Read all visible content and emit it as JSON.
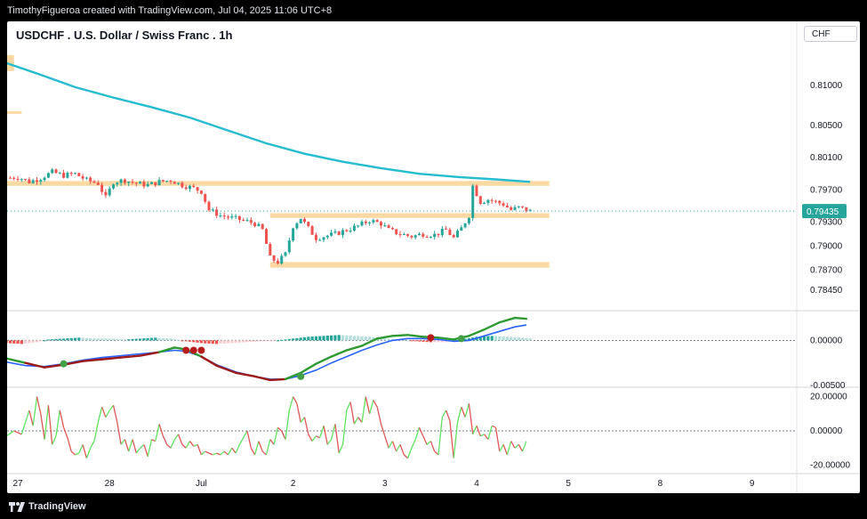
{
  "header": {
    "credit": "TimothyFigueroa created with TradingView.com, Jul 04, 2025 11:06 UTC+8"
  },
  "symbol": {
    "title": "USDCHF . U.S. Dollar / Swiss Franc . 1h",
    "currency": "CHF"
  },
  "footer": {
    "brand": "TradingView"
  },
  "colors": {
    "up": "#26a69a",
    "down": "#ef5350",
    "ma": "#26bcd0",
    "zone": "#fcd9a2",
    "macd_fast": "#2e9a32",
    "macd_slow": "#2962ff",
    "macd_dn": "#9c1a1a",
    "osc_up": "#5fe35f",
    "osc_dn": "#e05656"
  },
  "chart_data": {
    "type": "candlestick",
    "x_ticks": [
      {
        "label": "27",
        "t": 0
      },
      {
        "label": "28",
        "t": 24
      },
      {
        "label": "Jul",
        "t": 48
      },
      {
        "label": "2",
        "t": 72
      },
      {
        "label": "3",
        "t": 96
      },
      {
        "label": "4",
        "t": 120
      },
      {
        "label": "5",
        "t": 144
      },
      {
        "label": "8",
        "t": 168
      },
      {
        "label": "9",
        "t": 192
      }
    ],
    "price_pane": {
      "ylim": [
        0.7825,
        0.814
      ],
      "y_ticks": [
        "0.81000",
        "0.80500",
        "0.80100",
        "0.79700",
        "0.79300",
        "0.79000",
        "0.78700",
        "0.78450"
      ],
      "last_price": "0.79435",
      "path": [
        [
          -2,
          0.7985
        ],
        [
          0,
          0.7986
        ],
        [
          3,
          0.798
        ],
        [
          6,
          0.7985
        ],
        [
          9,
          0.7992
        ],
        [
          12,
          0.7988
        ],
        [
          15,
          0.799
        ],
        [
          18,
          0.7982
        ],
        [
          21,
          0.7978
        ],
        [
          23,
          0.796
        ],
        [
          25,
          0.798
        ],
        [
          28,
          0.7982
        ],
        [
          31,
          0.7978
        ],
        [
          34,
          0.7976
        ],
        [
          37,
          0.798
        ],
        [
          40,
          0.7982
        ],
        [
          43,
          0.7976
        ],
        [
          46,
          0.7972
        ],
        [
          48,
          0.7968
        ],
        [
          50,
          0.7945
        ],
        [
          53,
          0.7938
        ],
        [
          56,
          0.7935
        ],
        [
          59,
          0.7932
        ],
        [
          62,
          0.7928
        ],
        [
          64,
          0.792
        ],
        [
          66,
          0.7885
        ],
        [
          68,
          0.788
        ],
        [
          70,
          0.789
        ],
        [
          72,
          0.7925
        ],
        [
          74,
          0.7935
        ],
        [
          76,
          0.7922
        ],
        [
          78,
          0.791
        ],
        [
          80,
          0.7912
        ],
        [
          83,
          0.7915
        ],
        [
          86,
          0.792
        ],
        [
          89,
          0.7925
        ],
        [
          92,
          0.7932
        ],
        [
          95,
          0.7928
        ],
        [
          97,
          0.792
        ],
        [
          100,
          0.7915
        ],
        [
          103,
          0.7912
        ],
        [
          106,
          0.7915
        ],
        [
          109,
          0.7914
        ],
        [
          112,
          0.792
        ],
        [
          114,
          0.791
        ],
        [
          116,
          0.7922
        ],
        [
          118,
          0.7938
        ],
        [
          119,
          0.7975
        ],
        [
          121,
          0.7955
        ],
        [
          123,
          0.7958
        ],
        [
          125,
          0.7955
        ],
        [
          127,
          0.7952
        ],
        [
          129,
          0.7945
        ],
        [
          131,
          0.7948
        ],
        [
          133,
          0.7945
        ],
        [
          134,
          0.79435
        ]
      ],
      "ma_series": [
        [
          -3,
          0.8128
        ],
        [
          5,
          0.8115
        ],
        [
          15,
          0.8098
        ],
        [
          25,
          0.8085
        ],
        [
          35,
          0.8073
        ],
        [
          45,
          0.806
        ],
        [
          55,
          0.8044
        ],
        [
          65,
          0.8028
        ],
        [
          75,
          0.8015
        ],
        [
          85,
          0.8005
        ],
        [
          95,
          0.7997
        ],
        [
          105,
          0.799
        ],
        [
          115,
          0.7986
        ],
        [
          125,
          0.7983
        ],
        [
          134,
          0.798
        ]
      ],
      "zones": [
        {
          "t0": -3,
          "t1": 139,
          "p0": 0.7975,
          "p1": 0.7981
        },
        {
          "t0": 66,
          "t1": 139,
          "p0": 0.7935,
          "p1": 0.7941
        },
        {
          "t0": 66,
          "t1": 139,
          "p0": 0.7873,
          "p1": 0.788
        },
        {
          "t0": -3,
          "t1": 1,
          "p0": 0.8065,
          "p1": 0.8068
        },
        {
          "t0": -3,
          "t1": -1,
          "p0": 0.8118,
          "p1": 0.8138
        }
      ]
    },
    "macd_pane": {
      "ylim": [
        -0.0051,
        0.0028
      ],
      "y_ticks": [
        "0.00000",
        "-0.00500"
      ],
      "fast": [
        [
          -3,
          -0.002
        ],
        [
          2,
          -0.0025
        ],
        [
          7,
          -0.003
        ],
        [
          12,
          -0.0027
        ],
        [
          17,
          -0.0023
        ],
        [
          22,
          -0.0021
        ],
        [
          27,
          -0.0019
        ],
        [
          32,
          -0.0017
        ],
        [
          37,
          -0.0013
        ],
        [
          41,
          -0.0008
        ],
        [
          44,
          -0.001
        ],
        [
          48,
          -0.0018
        ],
        [
          52,
          -0.0028
        ],
        [
          57,
          -0.0036
        ],
        [
          62,
          -0.004
        ],
        [
          66,
          -0.0044
        ],
        [
          70,
          -0.0043
        ],
        [
          74,
          -0.0036
        ],
        [
          78,
          -0.0026
        ],
        [
          82,
          -0.0018
        ],
        [
          86,
          -0.0011
        ],
        [
          90,
          -0.0006
        ],
        [
          94,
          0.0002
        ],
        [
          98,
          0.0005
        ],
        [
          102,
          0.0006
        ],
        [
          106,
          0.0004
        ],
        [
          110,
          0.0003
        ],
        [
          114,
          0.0001
        ],
        [
          118,
          0.0005
        ],
        [
          122,
          0.0012
        ],
        [
          126,
          0.002
        ],
        [
          130,
          0.0025
        ],
        [
          133,
          0.0024
        ]
      ],
      "slow": [
        [
          -3,
          -0.0024
        ],
        [
          2,
          -0.0028
        ],
        [
          7,
          -0.0029
        ],
        [
          12,
          -0.0026
        ],
        [
          17,
          -0.0022
        ],
        [
          22,
          -0.0019
        ],
        [
          27,
          -0.0017
        ],
        [
          32,
          -0.0015
        ],
        [
          37,
          -0.0013
        ],
        [
          41,
          -0.0011
        ],
        [
          44,
          -0.0012
        ],
        [
          48,
          -0.0018
        ],
        [
          52,
          -0.0027
        ],
        [
          57,
          -0.0035
        ],
        [
          62,
          -0.004
        ],
        [
          66,
          -0.0043
        ],
        [
          70,
          -0.0043
        ],
        [
          74,
          -0.0039
        ],
        [
          78,
          -0.0033
        ],
        [
          82,
          -0.0025
        ],
        [
          86,
          -0.0018
        ],
        [
          90,
          -0.0011
        ],
        [
          94,
          -0.0005
        ],
        [
          98,
          0.0
        ],
        [
          102,
          0.0002
        ],
        [
          106,
          0.0002
        ],
        [
          110,
          0.0001
        ],
        [
          114,
          -0.0001
        ],
        [
          118,
          0.0
        ],
        [
          122,
          0.0005
        ],
        [
          126,
          0.001
        ],
        [
          130,
          0.0015
        ],
        [
          133,
          0.0017
        ]
      ],
      "crosses": [
        [
          12,
          -0.0026,
          "up"
        ],
        [
          44,
          -0.0011,
          "dn"
        ],
        [
          46,
          -0.0011,
          "dn"
        ],
        [
          48,
          -0.0011,
          "dn"
        ],
        [
          74,
          -0.004,
          "up"
        ],
        [
          108,
          0.0003,
          "dn"
        ],
        [
          116,
          0.0002,
          "up"
        ]
      ],
      "hist": [
        [
          -3,
          -0.0003
        ],
        [
          1,
          -0.0004
        ],
        [
          5,
          -0.0002
        ],
        [
          8,
          0.0001
        ],
        [
          12,
          0.0002
        ],
        [
          16,
          0.0003
        ],
        [
          20,
          0.0002
        ],
        [
          24,
          0.0002
        ],
        [
          28,
          0.0001
        ],
        [
          32,
          0.0002
        ],
        [
          36,
          0.0003
        ],
        [
          40,
          0.0002
        ],
        [
          44,
          -0.0001
        ],
        [
          48,
          -0.0003
        ],
        [
          52,
          -0.0004
        ],
        [
          56,
          -0.0003
        ],
        [
          60,
          -0.0002
        ],
        [
          64,
          -0.0001
        ],
        [
          68,
          0.0
        ],
        [
          72,
          0.0002
        ],
        [
          76,
          0.0004
        ],
        [
          80,
          0.0005
        ],
        [
          84,
          0.0006
        ],
        [
          88,
          0.0005
        ],
        [
          92,
          0.0004
        ],
        [
          96,
          0.0002
        ],
        [
          100,
          0.0001
        ],
        [
          104,
          -0.0001
        ],
        [
          108,
          -0.0002
        ],
        [
          112,
          -0.0002
        ],
        [
          116,
          0.0001
        ],
        [
          120,
          0.0004
        ],
        [
          124,
          0.0005
        ],
        [
          128,
          0.0004
        ],
        [
          132,
          0.0003
        ],
        [
          134,
          0.0002
        ]
      ]
    },
    "osc_pane": {
      "ylim": [
        -25,
        24
      ],
      "y_ticks": [
        "20.00000",
        "0.00000",
        "-20.00000"
      ],
      "series": [
        [
          -3,
          -3
        ],
        [
          -1,
          0
        ],
        [
          1,
          -2
        ],
        [
          3,
          12
        ],
        [
          4,
          3
        ],
        [
          5,
          20
        ],
        [
          6,
          10
        ],
        [
          7,
          -5
        ],
        [
          8,
          15
        ],
        [
          9,
          -8
        ],
        [
          10,
          -3
        ],
        [
          11,
          12
        ],
        [
          12,
          2
        ],
        [
          13,
          -4
        ],
        [
          14,
          -12
        ],
        [
          15,
          -14
        ],
        [
          16,
          -13
        ],
        [
          17,
          -8
        ],
        [
          18,
          -16
        ],
        [
          19,
          -10
        ],
        [
          20,
          -6
        ],
        [
          21,
          5
        ],
        [
          22,
          14
        ],
        [
          23,
          8
        ],
        [
          24,
          12
        ],
        [
          25,
          15
        ],
        [
          26,
          5
        ],
        [
          27,
          -8
        ],
        [
          28,
          -5
        ],
        [
          29,
          -12
        ],
        [
          30,
          -5
        ],
        [
          31,
          -13
        ],
        [
          32,
          -10
        ],
        [
          33,
          -8
        ],
        [
          34,
          -15
        ],
        [
          35,
          -5
        ],
        [
          36,
          -6
        ],
        [
          37,
          4
        ],
        [
          38,
          -3
        ],
        [
          39,
          -8
        ],
        [
          40,
          -10
        ],
        [
          41,
          -5
        ],
        [
          42,
          -2
        ],
        [
          43,
          -8
        ],
        [
          44,
          -10
        ],
        [
          45,
          -6
        ],
        [
          46,
          -9
        ],
        [
          47,
          -8
        ],
        [
          48,
          -14
        ],
        [
          49,
          -12
        ],
        [
          50,
          -13
        ],
        [
          51,
          -14
        ],
        [
          52,
          -13
        ],
        [
          53,
          -14
        ],
        [
          54,
          -12
        ],
        [
          55,
          -14
        ],
        [
          56,
          -10
        ],
        [
          57,
          -13
        ],
        [
          58,
          -8
        ],
        [
          59,
          -4
        ],
        [
          60,
          0
        ],
        [
          61,
          -10
        ],
        [
          62,
          -14
        ],
        [
          63,
          -6
        ],
        [
          64,
          -12
        ],
        [
          65,
          -14
        ],
        [
          66,
          -5
        ],
        [
          67,
          -8
        ],
        [
          68,
          2
        ],
        [
          69,
          0
        ],
        [
          70,
          -5
        ],
        [
          71,
          12
        ],
        [
          72,
          20
        ],
        [
          73,
          16
        ],
        [
          74,
          5
        ],
        [
          75,
          8
        ],
        [
          76,
          -2
        ],
        [
          77,
          -6
        ],
        [
          78,
          -3
        ],
        [
          79,
          -4
        ],
        [
          80,
          3
        ],
        [
          81,
          -8
        ],
        [
          82,
          -5
        ],
        [
          83,
          4
        ],
        [
          84,
          -13
        ],
        [
          85,
          -8
        ],
        [
          86,
          12
        ],
        [
          87,
          17
        ],
        [
          88,
          4
        ],
        [
          89,
          8
        ],
        [
          90,
          5
        ],
        [
          91,
          20
        ],
        [
          92,
          10
        ],
        [
          93,
          18
        ],
        [
          94,
          14
        ],
        [
          95,
          4
        ],
        [
          96,
          -3
        ],
        [
          97,
          -10
        ],
        [
          98,
          -6
        ],
        [
          99,
          -12
        ],
        [
          100,
          -8
        ],
        [
          101,
          -14
        ],
        [
          102,
          -16
        ],
        [
          103,
          -10
        ],
        [
          104,
          -5
        ],
        [
          105,
          2
        ],
        [
          106,
          -3
        ],
        [
          107,
          -8
        ],
        [
          108,
          -6
        ],
        [
          109,
          -12
        ],
        [
          110,
          -14
        ],
        [
          111,
          8
        ],
        [
          112,
          12
        ],
        [
          113,
          6
        ],
        [
          114,
          -16
        ],
        [
          115,
          5
        ],
        [
          116,
          14
        ],
        [
          117,
          8
        ],
        [
          118,
          16
        ],
        [
          119,
          -2
        ],
        [
          120,
          3
        ],
        [
          121,
          -3
        ],
        [
          122,
          -2
        ],
        [
          123,
          -5
        ],
        [
          124,
          3
        ],
        [
          125,
          2
        ],
        [
          126,
          -12
        ],
        [
          127,
          -8
        ],
        [
          128,
          -14
        ],
        [
          129,
          -6
        ],
        [
          130,
          -10
        ],
        [
          131,
          -8
        ],
        [
          132,
          -12
        ],
        [
          133,
          -6
        ]
      ]
    }
  }
}
